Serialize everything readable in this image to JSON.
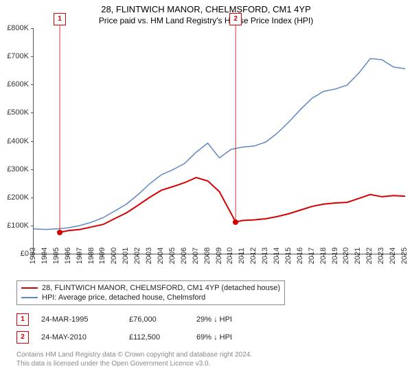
{
  "title": "28, FLINTWICH MANOR, CHELMSFORD, CM1 4YP",
  "subtitle": "Price paid vs. HM Land Registry's House Price Index (HPI)",
  "chart": {
    "type": "line",
    "background_color": "#ffffff",
    "axis_color": "#555555",
    "label_fontsize": 11,
    "x": {
      "min": 1993,
      "max": 2025,
      "ticks": [
        1993,
        1994,
        1995,
        1996,
        1997,
        1998,
        1999,
        2000,
        2001,
        2002,
        2003,
        2004,
        2005,
        2006,
        2007,
        2008,
        2009,
        2010,
        2011,
        2012,
        2013,
        2014,
        2015,
        2016,
        2017,
        2018,
        2019,
        2020,
        2021,
        2022,
        2023,
        2024,
        2025
      ]
    },
    "y": {
      "min": 0,
      "max": 800,
      "ticks": [
        0,
        100,
        200,
        300,
        400,
        500,
        600,
        700,
        800
      ],
      "tick_labels": [
        "£0",
        "£100K",
        "£200K",
        "£300K",
        "£400K",
        "£500K",
        "£600K",
        "£700K",
        "£800K"
      ]
    },
    "series": [
      {
        "id": "property",
        "label": "28, FLINTWICH MANOR, CHELMSFORD, CM1 4YP (detached house)",
        "color": "#d40000",
        "width": 2,
        "points": [
          [
            1995.25,
            76
          ],
          [
            1996,
            82
          ],
          [
            1997,
            86
          ],
          [
            1998,
            95
          ],
          [
            1999,
            104
          ],
          [
            2000,
            125
          ],
          [
            2001,
            145
          ],
          [
            2002,
            172
          ],
          [
            2003,
            200
          ],
          [
            2004,
            225
          ],
          [
            2005,
            238
          ],
          [
            2006,
            252
          ],
          [
            2007,
            270
          ],
          [
            2008,
            258
          ],
          [
            2009,
            220
          ],
          [
            2010.4,
            112.5
          ],
          [
            2011,
            118
          ],
          [
            2012,
            120
          ],
          [
            2013,
            124
          ],
          [
            2014,
            132
          ],
          [
            2015,
            142
          ],
          [
            2016,
            155
          ],
          [
            2017,
            168
          ],
          [
            2018,
            176
          ],
          [
            2019,
            180
          ],
          [
            2020,
            182
          ],
          [
            2021,
            196
          ],
          [
            2022,
            210
          ],
          [
            2023,
            202
          ],
          [
            2024,
            206
          ],
          [
            2025,
            204
          ]
        ]
      },
      {
        "id": "hpi",
        "label": "HPI: Average price, detached house, Chelmsford",
        "color": "#5b86c4",
        "width": 1.5,
        "points": [
          [
            1993,
            88
          ],
          [
            1994,
            86
          ],
          [
            1995,
            88
          ],
          [
            1996,
            92
          ],
          [
            1997,
            100
          ],
          [
            1998,
            112
          ],
          [
            1999,
            128
          ],
          [
            2000,
            152
          ],
          [
            2001,
            176
          ],
          [
            2002,
            210
          ],
          [
            2003,
            248
          ],
          [
            2004,
            280
          ],
          [
            2005,
            298
          ],
          [
            2006,
            320
          ],
          [
            2007,
            360
          ],
          [
            2008,
            392
          ],
          [
            2009,
            340
          ],
          [
            2010,
            370
          ],
          [
            2011,
            378
          ],
          [
            2012,
            382
          ],
          [
            2013,
            396
          ],
          [
            2014,
            428
          ],
          [
            2015,
            468
          ],
          [
            2016,
            512
          ],
          [
            2017,
            552
          ],
          [
            2018,
            576
          ],
          [
            2019,
            584
          ],
          [
            2020,
            598
          ],
          [
            2021,
            640
          ],
          [
            2022,
            692
          ],
          [
            2023,
            688
          ],
          [
            2024,
            662
          ],
          [
            2025,
            656
          ]
        ]
      }
    ],
    "markers": [
      {
        "n": "1",
        "year": 1995.25,
        "value": 76,
        "color": "#d40000"
      },
      {
        "n": "2",
        "year": 2010.4,
        "value": 112.5,
        "color": "#d40000"
      }
    ]
  },
  "legend": {
    "items": [
      {
        "color": "#d40000",
        "label": "28, FLINTWICH MANOR, CHELMSFORD, CM1 4YP (detached house)"
      },
      {
        "color": "#5b86c4",
        "label": "HPI: Average price, detached house, Chelmsford"
      }
    ]
  },
  "transactions": [
    {
      "n": "1",
      "color": "#d40000",
      "date": "24-MAR-1995",
      "price": "£76,000",
      "pct": "29% ↓ HPI"
    },
    {
      "n": "2",
      "color": "#d40000",
      "date": "24-MAY-2010",
      "price": "£112,500",
      "pct": "69% ↓ HPI"
    }
  ],
  "footer1": "Contains HM Land Registry data © Crown copyright and database right 2024.",
  "footer2": "This data is licensed under the Open Government Licence v3.0."
}
